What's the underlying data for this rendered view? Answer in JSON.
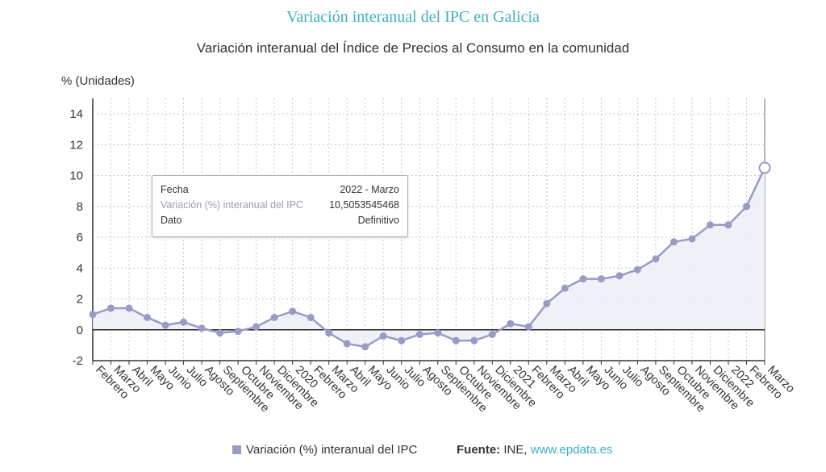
{
  "header": {
    "title": "Variación interanual del IPC en Galicia",
    "subtitle": "Variación interanual del Índice de Precios al Consumo en la comunidad",
    "y_unit": "% (Unidades)"
  },
  "colors": {
    "title": "#3bb1c3",
    "series": "#9a9ac4",
    "area": "#eef0f7",
    "axis": "#333333",
    "grid": "#c8c8c8",
    "link": "#3bb1c3"
  },
  "chart_data": {
    "type": "line",
    "title": "Variación interanual del IPC en Galicia",
    "subtitle": "Variación interanual del Índice de Precios al Consumo en la comunidad",
    "ylabel": "% (Unidades)",
    "xlabel": "",
    "ylim": [
      -2,
      15
    ],
    "yticks": [
      -2,
      0,
      2,
      4,
      6,
      8,
      10,
      12,
      14
    ],
    "grid": true,
    "categories": [
      "Febrero",
      "Marzo",
      "Abril",
      "Mayo",
      "Junio",
      "Julio",
      "Agosto",
      "Septiembre",
      "Octubre",
      "Noviembre",
      "Diciembre",
      "2020",
      "Febrero",
      "Marzo",
      "Abril",
      "Mayo",
      "Junio",
      "Julio",
      "Agosto",
      "Septiembre",
      "Octubre",
      "Noviembre",
      "Diciembre",
      "2021",
      "Febrero",
      "Marzo",
      "Abril",
      "Mayo",
      "Junio",
      "Julio",
      "Agosto",
      "Septiembre",
      "Octubre",
      "Noviembre",
      "Diciembre",
      "2022",
      "Febrero",
      "Marzo"
    ],
    "series": [
      {
        "name": "Variación (%) interanual del IPC",
        "values": [
          1.0,
          1.4,
          1.4,
          0.8,
          0.3,
          0.5,
          0.1,
          -0.2,
          -0.1,
          0.2,
          0.8,
          1.2,
          0.8,
          -0.2,
          -0.9,
          -1.1,
          -0.4,
          -0.7,
          -0.3,
          -0.2,
          -0.7,
          -0.7,
          -0.3,
          0.4,
          0.2,
          1.7,
          2.7,
          3.3,
          3.3,
          3.5,
          3.9,
          4.6,
          5.7,
          5.9,
          6.8,
          6.8,
          8.0,
          10.5
        ]
      }
    ],
    "highlight_index": 37,
    "legend_position": "bottom"
  },
  "tooltip": {
    "rows": [
      {
        "label": "Fecha",
        "value": "2022 - Marzo"
      },
      {
        "label": "Variación (%) interanual del IPC",
        "value": "10,5053545468"
      },
      {
        "label": "Dato",
        "value": "Definitivo"
      }
    ]
  },
  "legend": {
    "label": "Variación (%) interanual del IPC"
  },
  "source": {
    "label": "Fuente:",
    "org": "INE,",
    "link": "www.epdata.es"
  }
}
